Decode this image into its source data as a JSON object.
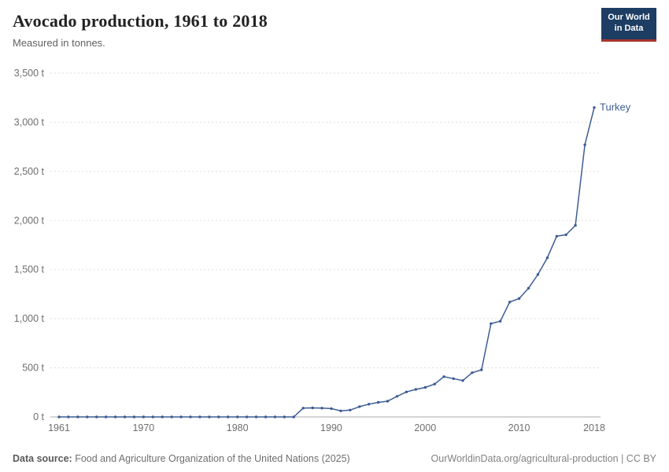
{
  "header": {
    "title": "Avocado production, 1961 to 2018",
    "subtitle": "Measured in tonnes.",
    "logo": {
      "line1": "Our World",
      "line2": "in Data"
    }
  },
  "footer": {
    "source_label": "Data source:",
    "source_text": " Food and Agriculture Organization of the United Nations (2025)",
    "right_text": "OurWorldinData.org/agricultural-production | CC BY"
  },
  "colors": {
    "line": "#3d5c94",
    "logo_bg": "#1d3d63",
    "logo_stripe": "#a8352b",
    "gridline": "#dedede",
    "axis_text": "#6e6e6e"
  },
  "chart_data": {
    "type": "line",
    "title": "Avocado production, 1961 to 2018",
    "subtitle": "Measured in tonnes.",
    "xlabel": "",
    "ylabel": "",
    "xlim": [
      1961,
      2018
    ],
    "ylim": [
      0,
      3500
    ],
    "xticks": [
      1961,
      1970,
      1980,
      1990,
      2000,
      2010,
      2018
    ],
    "yticks": [
      0,
      500,
      1000,
      1500,
      2000,
      2500,
      3000,
      3500
    ],
    "ytick_labels": [
      "0 t",
      "500 t",
      "1,000 t",
      "1,500 t",
      "2,000 t",
      "2,500 t",
      "3,000 t",
      "3,500 t"
    ],
    "grid": "horizontal-dashed",
    "legend_position": "end-of-line-label",
    "series": [
      {
        "name": "Turkey",
        "color": "#3d5c94",
        "x": [
          1961,
          1962,
          1963,
          1964,
          1965,
          1966,
          1967,
          1968,
          1969,
          1970,
          1971,
          1972,
          1973,
          1974,
          1975,
          1976,
          1977,
          1978,
          1979,
          1980,
          1981,
          1982,
          1983,
          1984,
          1985,
          1986,
          1987,
          1988,
          1989,
          1990,
          1991,
          1992,
          1993,
          1994,
          1995,
          1996,
          1997,
          1998,
          1999,
          2000,
          2001,
          2002,
          2003,
          2004,
          2005,
          2006,
          2007,
          2008,
          2009,
          2010,
          2011,
          2012,
          2013,
          2014,
          2015,
          2016,
          2017,
          2018
        ],
        "values": [
          0,
          0,
          0,
          0,
          0,
          0,
          0,
          0,
          0,
          0,
          0,
          0,
          0,
          0,
          0,
          0,
          0,
          0,
          0,
          0,
          0,
          0,
          0,
          0,
          0,
          0,
          90,
          92,
          90,
          85,
          62,
          70,
          105,
          130,
          148,
          160,
          210,
          255,
          280,
          300,
          335,
          410,
          390,
          370,
          450,
          480,
          950,
          975,
          1170,
          1205,
          1310,
          1450,
          1620,
          1840,
          1855,
          1950,
          2770,
          3150
        ]
      }
    ]
  }
}
